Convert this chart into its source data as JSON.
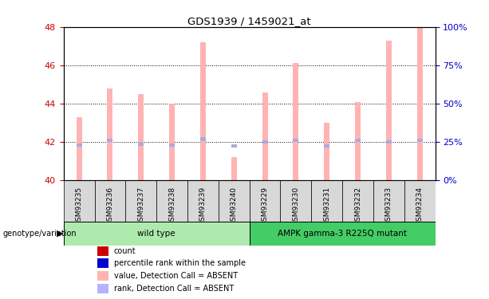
{
  "title": "GDS1939 / 1459021_at",
  "samples": [
    "GSM93235",
    "GSM93236",
    "GSM93237",
    "GSM93238",
    "GSM93239",
    "GSM93240",
    "GSM93229",
    "GSM93230",
    "GSM93231",
    "GSM93232",
    "GSM93233",
    "GSM93234"
  ],
  "pink_bar_values": [
    43.3,
    44.8,
    44.5,
    44.0,
    47.2,
    41.2,
    44.6,
    46.1,
    43.0,
    44.1,
    47.3,
    48.0
  ],
  "blue_bar_values": [
    41.85,
    42.1,
    41.9,
    41.85,
    42.15,
    41.8,
    42.0,
    42.1,
    41.8,
    42.1,
    42.0,
    42.1
  ],
  "ylim_left": [
    40,
    48
  ],
  "ylim_right": [
    0,
    100
  ],
  "yticks_left": [
    40,
    42,
    44,
    46,
    48
  ],
  "yticks_right": [
    0,
    25,
    50,
    75,
    100
  ],
  "ytick_labels_right": [
    "0%",
    "25%",
    "50%",
    "75%",
    "100%"
  ],
  "groups": [
    {
      "label": "wild type",
      "start": 0,
      "end": 6,
      "color": "#aeeaae"
    },
    {
      "label": "AMPK gamma-3 R225Q mutant",
      "start": 6,
      "end": 12,
      "color": "#44cc66"
    }
  ],
  "genotype_label": "genotype/variation",
  "legend_items": [
    {
      "color": "#cc0000",
      "label": "count"
    },
    {
      "color": "#0000cc",
      "label": "percentile rank within the sample"
    },
    {
      "color": "#ffb3b3",
      "label": "value, Detection Call = ABSENT"
    },
    {
      "color": "#b3b3ff",
      "label": "rank, Detection Call = ABSENT"
    }
  ],
  "bg_color": "#ffffff",
  "plot_bg": "#ffffff",
  "tick_label_color_left": "#cc0000",
  "tick_label_color_right": "#0000cc",
  "cell_color": "#d8d8d8"
}
